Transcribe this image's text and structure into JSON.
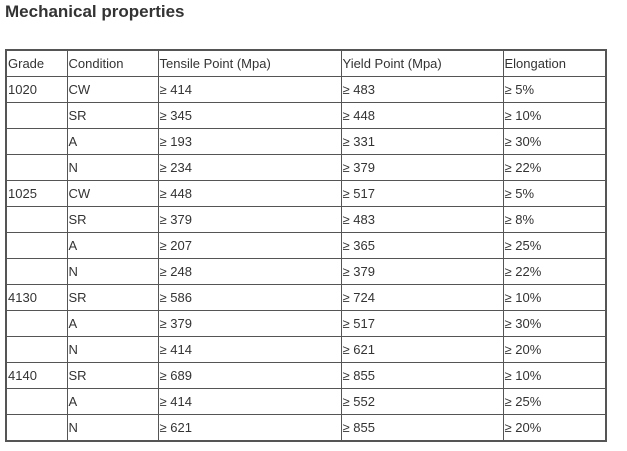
{
  "title": "Mechanical properties",
  "table": {
    "headers": [
      "Grade",
      "Condition",
      "Tensile Point (Mpa)",
      "Yield Point (Mpa)",
      "Elongation"
    ],
    "rows": [
      [
        "1020",
        "CW",
        "≥ 414",
        "≥ 483",
        "≥ 5%"
      ],
      [
        "",
        "SR",
        "≥ 345",
        "≥ 448",
        "≥ 10%"
      ],
      [
        "",
        "A",
        "≥ 193",
        "≥ 331",
        "≥ 30%"
      ],
      [
        "",
        "N",
        "≥ 234",
        "≥ 379",
        "≥ 22%"
      ],
      [
        "1025",
        "CW",
        "≥ 448",
        "≥ 517",
        "≥ 5%"
      ],
      [
        "",
        "SR",
        "≥ 379",
        "≥ 483",
        "≥ 8%"
      ],
      [
        "",
        "A",
        "≥ 207",
        "≥ 365",
        "≥ 25%"
      ],
      [
        "",
        "N",
        "≥ 248",
        "≥ 379",
        "≥ 22%"
      ],
      [
        "4130",
        "SR",
        "≥ 586",
        "≥ 724",
        "≥ 10%"
      ],
      [
        "",
        "A",
        "≥ 379",
        "≥ 517",
        "≥ 30%"
      ],
      [
        "",
        "N",
        "≥ 414",
        "≥ 621",
        "≥ 20%"
      ],
      [
        "4140",
        "SR",
        "≥ 689",
        "≥ 855",
        "≥ 10%"
      ],
      [
        "",
        "A",
        "≥ 414",
        "≥ 552",
        "≥ 25%"
      ],
      [
        "",
        "N",
        "≥ 621",
        "≥ 855",
        "≥ 20%"
      ]
    ]
  }
}
